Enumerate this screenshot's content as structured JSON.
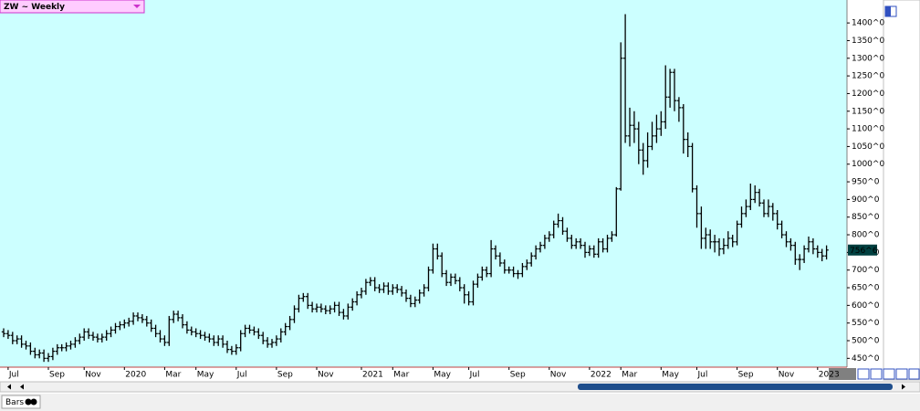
{
  "header": {
    "label": "ZW ~ Weekly"
  },
  "footer": {
    "tab": "Bars"
  },
  "chart_data": {
    "type": "ohlc",
    "color": "#000000",
    "background": "#ccffff",
    "grid": false,
    "ylim": [
      425,
      1465
    ],
    "yticks": [
      {
        "value": 450,
        "label": "450^0"
      },
      {
        "value": 500,
        "label": "500^0"
      },
      {
        "value": 550,
        "label": "550^0"
      },
      {
        "value": 600,
        "label": "600^0"
      },
      {
        "value": 650,
        "label": "650^0"
      },
      {
        "value": 700,
        "label": "700^0"
      },
      {
        "value": 750,
        "label": "750^0"
      },
      {
        "value": 800,
        "label": "800^0"
      },
      {
        "value": 850,
        "label": "850^0"
      },
      {
        "value": 900,
        "label": "900^0"
      },
      {
        "value": 950,
        "label": "950^0"
      },
      {
        "value": 1000,
        "label": "1000^0"
      },
      {
        "value": 1050,
        "label": "1050^0"
      },
      {
        "value": 1100,
        "label": "1100^0"
      },
      {
        "value": 1150,
        "label": "1150^0"
      },
      {
        "value": 1200,
        "label": "1200^0"
      },
      {
        "value": 1250,
        "label": "1250^0"
      },
      {
        "value": 1300,
        "label": "1300^0"
      },
      {
        "value": 1350,
        "label": "1350^0"
      },
      {
        "value": 1400,
        "label": "1400^0"
      }
    ],
    "last_price": {
      "value": 756.75,
      "label": "756^6"
    },
    "categories": [
      null,
      "Jul",
      null,
      null,
      null,
      null,
      null,
      null,
      null,
      null,
      "Sep",
      null,
      null,
      null,
      null,
      null,
      null,
      null,
      "Nov",
      null,
      null,
      null,
      null,
      null,
      null,
      null,
      null,
      "2020",
      null,
      null,
      null,
      null,
      null,
      null,
      null,
      null,
      "Mar",
      null,
      null,
      null,
      null,
      null,
      null,
      "May",
      null,
      null,
      null,
      null,
      null,
      null,
      null,
      null,
      "Jul",
      null,
      null,
      null,
      null,
      null,
      null,
      null,
      null,
      "Sep",
      null,
      null,
      null,
      null,
      null,
      null,
      null,
      null,
      "Nov",
      null,
      null,
      null,
      null,
      null,
      null,
      null,
      null,
      null,
      "2021",
      null,
      null,
      null,
      null,
      null,
      null,
      "Mar",
      null,
      null,
      null,
      null,
      null,
      null,
      null,
      null,
      "May",
      null,
      null,
      null,
      null,
      null,
      null,
      null,
      "Jul",
      null,
      null,
      null,
      null,
      null,
      null,
      null,
      null,
      "Sep",
      null,
      null,
      null,
      null,
      null,
      null,
      null,
      null,
      "Nov",
      null,
      null,
      null,
      null,
      null,
      null,
      null,
      null,
      "2022",
      null,
      null,
      null,
      null,
      null,
      null,
      "Mar",
      null,
      null,
      null,
      null,
      null,
      null,
      null,
      null,
      "May",
      null,
      null,
      null,
      null,
      null,
      null,
      null,
      "Jul",
      null,
      null,
      null,
      null,
      null,
      null,
      null,
      null,
      "Sep",
      null,
      null,
      null,
      null,
      null,
      null,
      null,
      null,
      "Nov",
      null,
      null,
      null,
      null,
      null,
      null,
      null,
      null,
      "2023",
      null,
      null
    ],
    "open": [
      525,
      520,
      515,
      500,
      505,
      490,
      485,
      470,
      460,
      465,
      450,
      455,
      470,
      480,
      480,
      485,
      490,
      500,
      510,
      525,
      515,
      510,
      505,
      510,
      520,
      530,
      540,
      545,
      550,
      555,
      570,
      565,
      560,
      550,
      535,
      520,
      505,
      495,
      560,
      575,
      565,
      545,
      530,
      525,
      520,
      515,
      510,
      505,
      495,
      505,
      490,
      475,
      470,
      480,
      520,
      535,
      530,
      525,
      515,
      500,
      490,
      495,
      505,
      525,
      540,
      560,
      590,
      620,
      625,
      600,
      590,
      595,
      590,
      585,
      590,
      600,
      580,
      570,
      595,
      610,
      630,
      640,
      665,
      670,
      650,
      645,
      655,
      640,
      650,
      645,
      635,
      620,
      605,
      615,
      635,
      650,
      700,
      760,
      740,
      690,
      665,
      680,
      670,
      650,
      630,
      610,
      660,
      680,
      700,
      690,
      760,
      740,
      720,
      700,
      700,
      690,
      690,
      710,
      720,
      740,
      760,
      770,
      790,
      800,
      830,
      840,
      810,
      790,
      770,
      780,
      770,
      750,
      760,
      745,
      780,
      760,
      790,
      800,
      930,
      1300,
      1080,
      1110,
      1100,
      1040,
      1010,
      1050,
      1080,
      1100,
      1120,
      1190,
      1260,
      1180,
      1160,
      1070,
      1050,
      930,
      860,
      790,
      800,
      780,
      780,
      760,
      770,
      790,
      780,
      830,
      860,
      880,
      900,
      920,
      890,
      860,
      880,
      860,
      830,
      800,
      780,
      770,
      730,
      730,
      760,
      780,
      760,
      750,
      740
    ],
    "high": [
      535,
      530,
      525,
      515,
      515,
      500,
      495,
      480,
      475,
      475,
      465,
      480,
      490,
      490,
      495,
      500,
      510,
      520,
      535,
      535,
      525,
      520,
      520,
      530,
      540,
      550,
      555,
      560,
      565,
      580,
      580,
      575,
      570,
      560,
      545,
      530,
      515,
      570,
      585,
      585,
      575,
      555,
      540,
      535,
      530,
      525,
      520,
      515,
      515,
      515,
      500,
      485,
      490,
      530,
      545,
      545,
      540,
      535,
      525,
      510,
      505,
      515,
      535,
      550,
      570,
      600,
      630,
      635,
      635,
      610,
      605,
      605,
      600,
      600,
      610,
      610,
      590,
      605,
      620,
      640,
      650,
      675,
      680,
      680,
      660,
      665,
      665,
      660,
      660,
      655,
      645,
      630,
      625,
      645,
      660,
      710,
      775,
      775,
      750,
      700,
      690,
      690,
      680,
      660,
      640,
      670,
      690,
      710,
      710,
      785,
      770,
      750,
      730,
      710,
      710,
      700,
      720,
      730,
      750,
      770,
      780,
      800,
      810,
      840,
      860,
      850,
      820,
      800,
      790,
      790,
      780,
      770,
      770,
      790,
      790,
      800,
      810,
      935,
      1345,
      1425,
      1160,
      1150,
      1120,
      1060,
      1090,
      1120,
      1140,
      1150,
      1280,
      1270,
      1270,
      1190,
      1170,
      1090,
      1060,
      940,
      880,
      820,
      815,
      800,
      790,
      790,
      810,
      800,
      840,
      880,
      900,
      945,
      940,
      930,
      900,
      900,
      890,
      870,
      840,
      810,
      790,
      780,
      745,
      770,
      795,
      790,
      770,
      760,
      770
    ],
    "low": [
      510,
      505,
      490,
      490,
      480,
      475,
      460,
      450,
      450,
      440,
      440,
      445,
      460,
      470,
      470,
      475,
      480,
      490,
      500,
      505,
      500,
      495,
      495,
      500,
      510,
      520,
      530,
      535,
      540,
      545,
      555,
      550,
      540,
      525,
      510,
      495,
      485,
      485,
      550,
      555,
      535,
      520,
      515,
      510,
      505,
      500,
      495,
      485,
      485,
      480,
      465,
      460,
      460,
      470,
      510,
      520,
      515,
      505,
      490,
      480,
      480,
      485,
      495,
      515,
      530,
      550,
      580,
      610,
      590,
      580,
      580,
      580,
      575,
      575,
      580,
      570,
      560,
      560,
      585,
      600,
      620,
      630,
      655,
      640,
      635,
      635,
      630,
      630,
      635,
      625,
      610,
      595,
      595,
      605,
      625,
      640,
      690,
      730,
      680,
      655,
      655,
      660,
      640,
      605,
      600,
      600,
      650,
      670,
      680,
      680,
      730,
      710,
      690,
      690,
      680,
      675,
      680,
      700,
      710,
      730,
      750,
      760,
      780,
      790,
      820,
      800,
      780,
      760,
      760,
      760,
      735,
      740,
      735,
      735,
      750,
      750,
      780,
      795,
      925,
      1060,
      1050,
      1060,
      1000,
      970,
      990,
      1040,
      1060,
      1080,
      1100,
      1160,
      1150,
      1120,
      1030,
      1020,
      920,
      820,
      760,
      760,
      760,
      750,
      740,
      745,
      760,
      765,
      770,
      820,
      850,
      870,
      890,
      880,
      850,
      850,
      840,
      815,
      790,
      765,
      755,
      715,
      700,
      720,
      750,
      745,
      735,
      725,
      730
    ],
    "close": [
      520,
      515,
      500,
      505,
      490,
      485,
      470,
      460,
      465,
      450,
      455,
      470,
      480,
      480,
      485,
      490,
      500,
      510,
      525,
      515,
      510,
      505,
      510,
      520,
      530,
      540,
      545,
      550,
      555,
      570,
      565,
      560,
      550,
      535,
      520,
      505,
      495,
      560,
      575,
      565,
      545,
      530,
      525,
      520,
      515,
      510,
      505,
      495,
      505,
      490,
      475,
      470,
      480,
      520,
      535,
      530,
      525,
      515,
      500,
      490,
      495,
      505,
      525,
      540,
      560,
      590,
      620,
      625,
      600,
      590,
      595,
      590,
      585,
      590,
      600,
      580,
      570,
      595,
      610,
      630,
      640,
      665,
      670,
      650,
      645,
      655,
      640,
      650,
      645,
      635,
      620,
      605,
      615,
      635,
      650,
      700,
      760,
      740,
      690,
      665,
      680,
      670,
      650,
      630,
      610,
      660,
      680,
      700,
      690,
      760,
      740,
      720,
      700,
      700,
      690,
      690,
      710,
      720,
      740,
      760,
      770,
      790,
      800,
      830,
      840,
      810,
      790,
      770,
      780,
      770,
      750,
      760,
      745,
      780,
      760,
      790,
      800,
      930,
      1300,
      1080,
      1110,
      1100,
      1040,
      1010,
      1050,
      1080,
      1100,
      1120,
      1190,
      1260,
      1180,
      1160,
      1070,
      1050,
      930,
      860,
      790,
      800,
      780,
      780,
      760,
      770,
      790,
      780,
      830,
      860,
      880,
      900,
      920,
      890,
      860,
      880,
      860,
      830,
      800,
      780,
      770,
      730,
      730,
      760,
      780,
      760,
      750,
      740,
      756.75
    ]
  }
}
